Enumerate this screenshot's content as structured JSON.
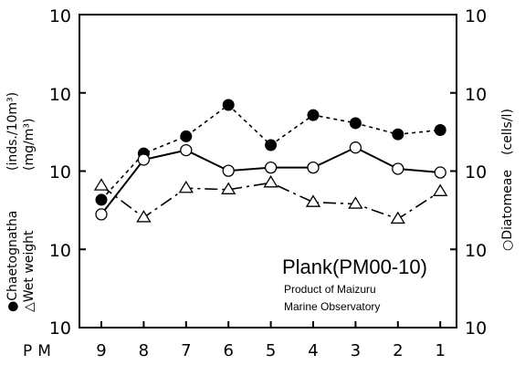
{
  "chart_data": {
    "type": "line",
    "x_axis": {
      "prefix_label": "PM",
      "categories": [
        "9",
        "8",
        "7",
        "6",
        "5",
        "4",
        "3",
        "2",
        "1"
      ]
    },
    "y_left": {
      "scale": "log",
      "tick_labels": [
        "10",
        "10",
        "10",
        "10",
        "10"
      ],
      "units_line1": "(inds./10m³)",
      "units_line2": "(mg/m³)",
      "legend_line1": "●Chaetognatha",
      "legend_line2": "△Wet weight"
    },
    "y_right": {
      "scale": "log",
      "tick_labels": [
        "10",
        "10",
        "10",
        "10",
        "10"
      ],
      "units": "(cells/l)",
      "legend": "○Diatomeae"
    },
    "series": [
      {
        "name": "Chaetognatha",
        "marker": "filled-circle",
        "line_style": "dotted",
        "color": "#000000",
        "values": [
          4.3,
          16.8,
          27.8,
          70.0,
          21.5,
          52.0,
          41.0,
          29.5,
          33.5
        ]
      },
      {
        "name": "Diatomeae",
        "marker": "open-circle",
        "line_style": "solid",
        "color": "#000000",
        "values": [
          2.8,
          14.0,
          18.5,
          10.1,
          11.1,
          11.1,
          20.0,
          10.7,
          9.6
        ]
      },
      {
        "name": "Wet weight",
        "marker": "open-triangle",
        "line_style": "dash-dot",
        "color": "#000000",
        "values": [
          6.5,
          2.55,
          6.05,
          5.8,
          7.1,
          4.0,
          3.8,
          2.45,
          5.5
        ]
      }
    ],
    "annotation": {
      "title": "Plank(PM00-10)",
      "line1": "Product of Maizuru",
      "line2": "Marine Observatory"
    },
    "grid": false
  }
}
